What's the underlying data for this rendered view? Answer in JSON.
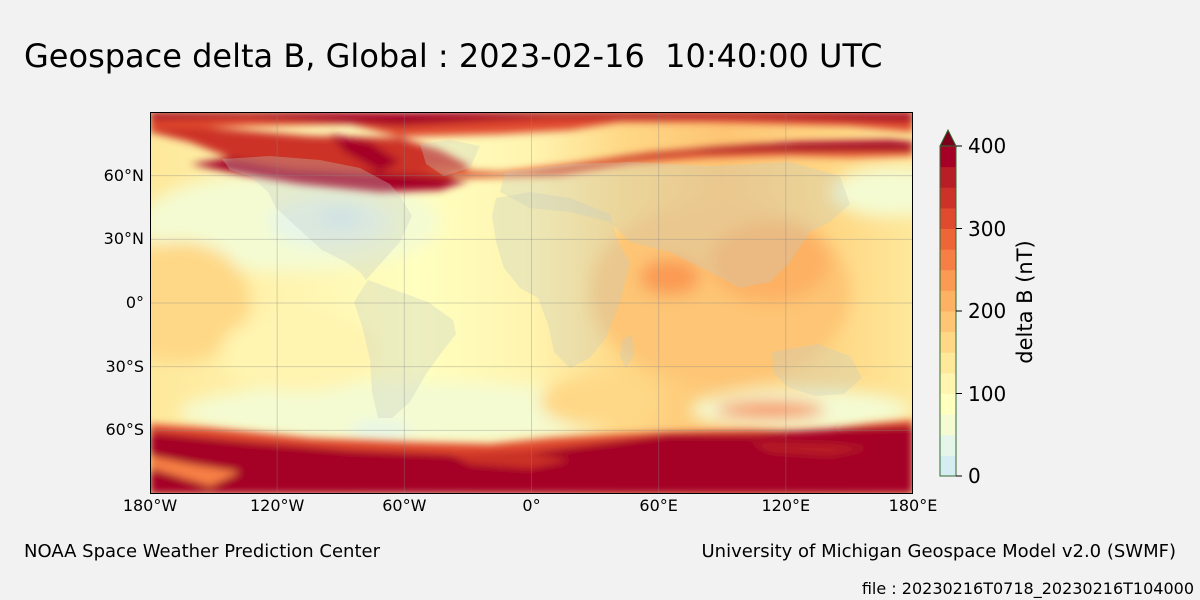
{
  "title": "Geospace delta B, Global : 2023-02-16  10:40:00 UTC",
  "map": {
    "lat_labels": [
      "60°N",
      "30°N",
      "0°",
      "30°S",
      "60°S"
    ],
    "lon_labels": [
      "180°W",
      "120°W",
      "60°W",
      "0°",
      "60°E",
      "120°E",
      "180°E"
    ],
    "lat_ticks": [
      60,
      30,
      0,
      -30,
      -60
    ],
    "lon_ticks": [
      -180,
      -120,
      -60,
      0,
      60,
      120,
      180
    ],
    "lat_range": [
      -90,
      90
    ],
    "lon_range": [
      -180,
      180
    ],
    "gridlines": true
  },
  "colorbar": {
    "label": "delta B (nT)",
    "ticks": [
      "0",
      "100",
      "200",
      "300",
      "400"
    ],
    "tick_values": [
      0,
      100,
      200,
      300,
      400
    ],
    "range": [
      0,
      400
    ],
    "extend": "max",
    "colormap": [
      "#d6ecf3",
      "#e6f5ea",
      "#f4fbd2",
      "#ffffbf",
      "#fff4b0",
      "#fee89a",
      "#fed886",
      "#fdc574",
      "#fdb163",
      "#fb9a52",
      "#f67f45",
      "#ee6538",
      "#e04a2f",
      "#cc3227",
      "#b81e26",
      "#a50026"
    ]
  },
  "footer": {
    "left": "NOAA Space Weather Prediction Center",
    "right": "University of Michigan Geospace Model v2.0 (SWMF)",
    "file": "file : 20230216T0718_20230216T104000"
  }
}
